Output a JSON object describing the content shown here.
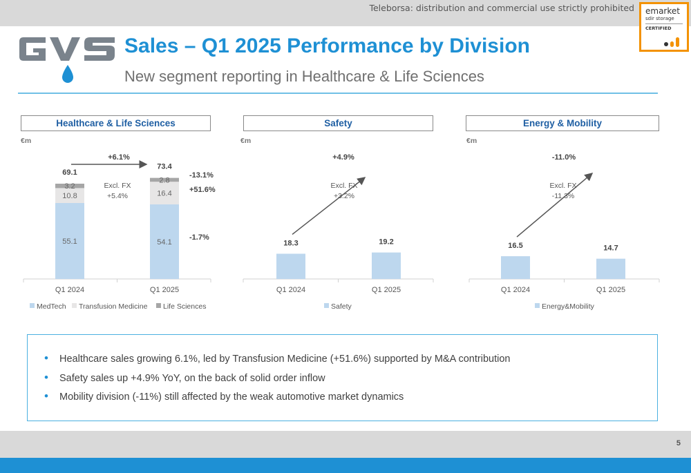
{
  "header": {
    "disclaimer": "Teleborsa: distribution and commercial use strictly prohibited",
    "title": "Sales – Q1 2025 Performance by Division",
    "subtitle": "New segment reporting in Healthcare & Life Sciences",
    "logo_text": "GVS",
    "badge": {
      "line1": "emarket",
      "line2": "sdir storage",
      "line3": "CERTIFIED"
    }
  },
  "colors": {
    "brand_blue": "#1e90d4",
    "bar_light_blue": "#bdd7ee",
    "bar_light_grey": "#e7e6e6",
    "bar_dark_grey": "#a6a6a6",
    "header_text": "#1f5fa3"
  },
  "panels": [
    {
      "heading": "Healthcare & Life Sciences",
      "unit": "€m"
    },
    {
      "heading": "Safety",
      "unit": "€m"
    },
    {
      "heading": "Energy & Mobility",
      "unit": "€m"
    }
  ],
  "chart_data": [
    {
      "type": "bar",
      "stacked": true,
      "title": "Healthcare & Life Sciences",
      "ylabel": "€m",
      "categories": [
        "Q1 2024",
        "Q1 2025"
      ],
      "series": [
        {
          "name": "MedTech",
          "values": [
            55.1,
            54.1
          ],
          "color": "#bdd7ee"
        },
        {
          "name": "Transfusion Medicine",
          "values": [
            10.8,
            16.4
          ],
          "color": "#e7e6e6"
        },
        {
          "name": "Life Sciences",
          "values": [
            3.2,
            2.8
          ],
          "color": "#a6a6a6"
        }
      ],
      "totals": [
        "69.1",
        "73.4"
      ],
      "growth": "+6.1%",
      "fx_note": [
        "Excl. FX",
        "+5.4%"
      ],
      "segment_changes": [
        "-13.1%",
        "+51.6%",
        "-1.7%"
      ],
      "legend_position": "bottom"
    },
    {
      "type": "bar",
      "title": "Safety",
      "ylabel": "€m",
      "categories": [
        "Q1 2024",
        "Q1 2025"
      ],
      "series": [
        {
          "name": "Safety",
          "values": [
            18.3,
            19.2
          ],
          "color": "#bdd7ee"
        }
      ],
      "growth": "+4.9%",
      "fx_note": [
        "Excl. FX",
        "+3.2%"
      ],
      "legend_position": "bottom"
    },
    {
      "type": "bar",
      "title": "Energy & Mobility",
      "ylabel": "€m",
      "categories": [
        "Q1 2024",
        "Q1 2025"
      ],
      "series": [
        {
          "name": "Energy&Mobility",
          "values": [
            16.5,
            14.7
          ],
          "color": "#bdd7ee"
        }
      ],
      "growth": "-11.0%",
      "fx_note": [
        "Excl. FX",
        "-11.3%"
      ],
      "legend_position": "bottom"
    }
  ],
  "bullets": [
    "Healthcare sales growing 6.1%, led by Transfusion Medicine (+51.6%) supported by M&A contribution",
    "Safety sales up +4.9% YoY, on the back of solid order inflow",
    "Mobility division (-11%) still affected by the weak automotive market dynamics"
  ],
  "footer": {
    "page_number": "5"
  }
}
